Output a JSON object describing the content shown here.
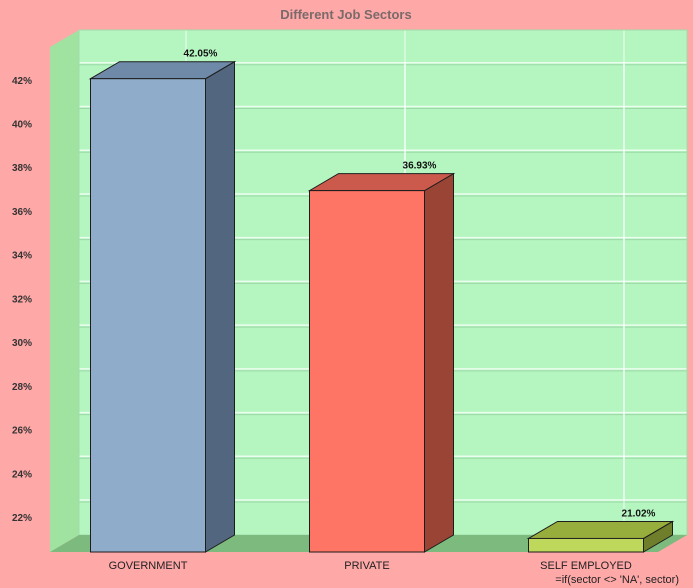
{
  "chart_data": {
    "type": "bar",
    "title": "Different Job Sectors",
    "categories": [
      "GOVERNMENT",
      "PRIVATE",
      "SELF EMPLOYED"
    ],
    "values": [
      42.05,
      36.93,
      21.02
    ],
    "value_labels": [
      "42.05%",
      "36.93%",
      "21.02%"
    ],
    "yticks": [
      "22%",
      "24%",
      "26%",
      "28%",
      "30%",
      "32%",
      "34%",
      "36%",
      "38%",
      "40%",
      "42%"
    ],
    "ytick_values": [
      22,
      24,
      26,
      28,
      30,
      32,
      34,
      36,
      38,
      40,
      42
    ],
    "ylim": [
      20.4,
      43.5
    ],
    "ylabel": "",
    "xlabel": "=if(sector <> 'NA', sector)",
    "grid": true,
    "legend": "none",
    "colors": {
      "background": "#ffa8a8",
      "wall": "#b4f5c0",
      "side_wall": "#a0e3a0",
      "floor": "#7dba7d",
      "bars": [
        {
          "front": "#8facca",
          "top": "#6f8aa8",
          "side": "#52667f"
        },
        {
          "front": "#ff7565",
          "top": "#cc5a4c",
          "side": "#9a4436"
        },
        {
          "front": "#bdd85a",
          "top": "#98ae3c",
          "side": "#6e7e2a"
        }
      ]
    }
  }
}
